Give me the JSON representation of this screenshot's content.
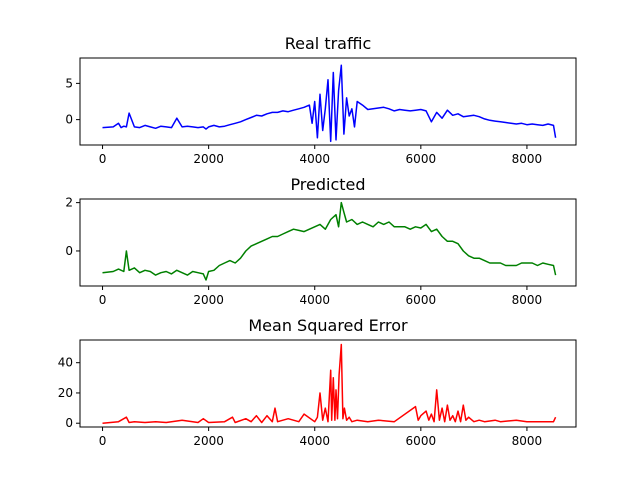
{
  "chart_data": [
    {
      "type": "line",
      "title": "Real traffic",
      "color": "#0000ff",
      "xlim": [
        -425,
        8925
      ],
      "ylim": [
        -3.5,
        8.5
      ],
      "xticks": [
        0,
        2000,
        4000,
        6000,
        8000
      ],
      "yticks": [
        0,
        5
      ],
      "series": [
        {
          "x": [
            0,
            200,
            300,
            350,
            400,
            450,
            500,
            600,
            700,
            800,
            900,
            1000,
            1100,
            1200,
            1300,
            1400,
            1500,
            1600,
            1700,
            1800,
            1900,
            1950,
            2000,
            2100,
            2200,
            2300,
            2400,
            2500,
            2600,
            2700,
            2800,
            2900,
            3000,
            3100,
            3200,
            3300,
            3400,
            3500,
            3600,
            3700,
            3800,
            3900,
            3950,
            4000,
            4050,
            4100,
            4150,
            4200,
            4250,
            4300,
            4350,
            4400,
            4450,
            4500,
            4550,
            4600,
            4650,
            4700,
            4750,
            4800,
            4900,
            5000,
            5100,
            5200,
            5300,
            5400,
            5500,
            5600,
            5700,
            5800,
            5900,
            6000,
            6100,
            6200,
            6300,
            6400,
            6500,
            6600,
            6700,
            6800,
            6900,
            7000,
            7100,
            7200,
            7300,
            7400,
            7500,
            7600,
            7700,
            7800,
            7900,
            8000,
            8100,
            8200,
            8300,
            8400,
            8500,
            8540
          ],
          "y": [
            -1.1,
            -1.0,
            -0.5,
            -1.1,
            -0.9,
            -1.0,
            0.9,
            -1.0,
            -1.1,
            -0.8,
            -1.0,
            -1.2,
            -0.9,
            -1.0,
            -1.1,
            0.2,
            -1.0,
            -0.9,
            -1.0,
            -1.1,
            -1.0,
            -1.3,
            -1.0,
            -0.8,
            -1.0,
            -0.9,
            -0.7,
            -0.5,
            -0.3,
            0.0,
            0.3,
            0.6,
            0.5,
            0.8,
            1.0,
            1.0,
            1.2,
            1.1,
            1.3,
            1.5,
            1.7,
            2.0,
            -0.5,
            2.5,
            -2.5,
            3.5,
            -1.5,
            1.5,
            5.5,
            -3.0,
            6.5,
            -2.8,
            4.0,
            7.5,
            -2.0,
            3.0,
            0.5,
            1.5,
            -1.0,
            2.5,
            2.0,
            1.4,
            1.5,
            1.6,
            1.7,
            1.5,
            1.2,
            1.4,
            1.3,
            1.2,
            1.3,
            1.4,
            1.2,
            -0.3,
            1.0,
            0.2,
            1.3,
            0.6,
            0.8,
            0.4,
            0.5,
            0.6,
            0.4,
            0.1,
            -0.1,
            -0.2,
            -0.3,
            -0.4,
            -0.5,
            -0.6,
            -0.5,
            -0.7,
            -0.6,
            -0.7,
            -0.8,
            -0.6,
            -0.8,
            -2.5
          ]
        }
      ]
    },
    {
      "type": "line",
      "title": "Predicted",
      "color": "#008000",
      "xlim": [
        -425,
        8925
      ],
      "ylim": [
        -1.45,
        2.15
      ],
      "xticks": [
        0,
        2000,
        4000,
        6000,
        8000
      ],
      "yticks": [
        0,
        2
      ],
      "series": [
        {
          "x": [
            0,
            200,
            300,
            400,
            450,
            500,
            600,
            700,
            800,
            900,
            1000,
            1100,
            1200,
            1300,
            1400,
            1500,
            1600,
            1700,
            1800,
            1900,
            1950,
            2000,
            2100,
            2200,
            2300,
            2400,
            2500,
            2600,
            2700,
            2800,
            2900,
            3000,
            3100,
            3200,
            3300,
            3400,
            3500,
            3600,
            3700,
            3800,
            3900,
            4000,
            4100,
            4200,
            4300,
            4400,
            4450,
            4500,
            4550,
            4600,
            4700,
            4800,
            4900,
            5000,
            5100,
            5200,
            5300,
            5400,
            5500,
            5600,
            5700,
            5800,
            5900,
            6000,
            6100,
            6200,
            6300,
            6400,
            6500,
            6600,
            6700,
            6800,
            6900,
            7000,
            7100,
            7200,
            7300,
            7400,
            7500,
            7600,
            7700,
            7800,
            7900,
            8000,
            8100,
            8200,
            8300,
            8400,
            8500,
            8540
          ],
          "y": [
            -0.9,
            -0.85,
            -0.75,
            -0.85,
            0.0,
            -0.8,
            -0.7,
            -0.9,
            -0.8,
            -0.85,
            -1.0,
            -0.9,
            -0.85,
            -0.95,
            -0.8,
            -0.9,
            -1.0,
            -0.85,
            -0.9,
            -0.95,
            -1.2,
            -0.85,
            -0.8,
            -0.6,
            -0.5,
            -0.4,
            -0.5,
            -0.3,
            0.0,
            0.2,
            0.3,
            0.4,
            0.5,
            0.6,
            0.6,
            0.7,
            0.8,
            0.9,
            0.85,
            0.8,
            0.9,
            1.0,
            1.1,
            0.9,
            1.3,
            1.5,
            1.0,
            2.0,
            1.6,
            1.2,
            1.3,
            1.1,
            1.2,
            1.1,
            1.0,
            1.2,
            1.1,
            1.2,
            1.0,
            1.0,
            1.0,
            0.9,
            1.0,
            0.95,
            1.1,
            0.8,
            0.9,
            0.6,
            0.4,
            0.4,
            0.3,
            0.0,
            -0.2,
            -0.3,
            -0.3,
            -0.4,
            -0.5,
            -0.5,
            -0.5,
            -0.6,
            -0.6,
            -0.6,
            -0.5,
            -0.5,
            -0.5,
            -0.6,
            -0.5,
            -0.55,
            -0.6,
            -1.0
          ]
        }
      ]
    },
    {
      "type": "line",
      "title": "Mean Squared Error",
      "color": "#ff0000",
      "xlim": [
        -425,
        8925
      ],
      "ylim": [
        -2.5,
        55
      ],
      "xticks": [
        0,
        2000,
        4000,
        6000,
        8000
      ],
      "yticks": [
        0,
        20,
        40
      ],
      "series": [
        {
          "x": [
            0,
            300,
            450,
            500,
            600,
            800,
            1000,
            1200,
            1500,
            1800,
            1900,
            2000,
            2300,
            2450,
            2500,
            2700,
            2800,
            2900,
            3000,
            3100,
            3200,
            3250,
            3300,
            3500,
            3700,
            3800,
            4000,
            4050,
            4100,
            4150,
            4200,
            4250,
            4300,
            4320,
            4350,
            4380,
            4400,
            4430,
            4460,
            4500,
            4530,
            4560,
            4600,
            4650,
            4700,
            4800,
            5000,
            5200,
            5500,
            5900,
            5950,
            6000,
            6100,
            6150,
            6200,
            6250,
            6300,
            6350,
            6400,
            6450,
            6500,
            6550,
            6600,
            6650,
            6700,
            6750,
            6800,
            6850,
            6900,
            7000,
            7100,
            7200,
            7400,
            7500,
            7800,
            8000,
            8200,
            8500,
            8540
          ],
          "y": [
            0,
            1,
            4,
            0.5,
            1,
            0.5,
            1,
            0.5,
            2,
            0.5,
            3,
            0.5,
            1,
            4,
            0.5,
            3,
            1,
            5,
            0.5,
            5,
            1,
            10,
            1,
            3,
            1,
            6,
            1,
            4,
            20,
            2,
            10,
            1,
            35,
            2,
            30,
            2,
            22,
            3,
            32,
            52,
            3,
            10,
            2,
            4,
            1,
            2,
            1,
            2,
            1,
            11,
            2,
            5,
            8,
            2,
            6,
            1,
            22,
            2,
            10,
            1,
            12,
            2,
            5,
            1,
            8,
            1,
            12,
            2,
            4,
            1,
            2,
            1,
            2,
            1,
            2,
            1,
            1,
            1,
            4
          ]
        }
      ]
    }
  ]
}
